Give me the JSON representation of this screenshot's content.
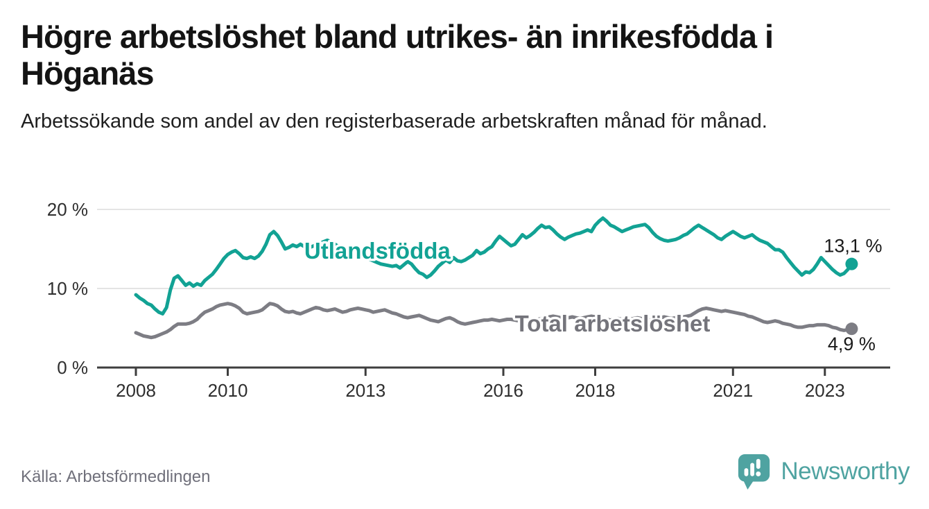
{
  "header": {
    "title": "Högre arbetslöshet bland utrikes- än inrikesfödda i Höganäs",
    "subtitle": "Arbetssökande som andel av den registerbaserade arbetskraften månad för månad."
  },
  "footer": {
    "source": "Källa: Arbetsförmedlingen",
    "brand": {
      "name": "Newsworthy",
      "color": "#4fa3a1",
      "icon": "speech-bubble-bar-chart-icon"
    }
  },
  "colors": {
    "foreign_born_line": "#12a294",
    "total_line": "#7d7d84",
    "axis": "#3d3d3d",
    "grid": "#e4e4e4",
    "tick_label": "#2e2e2e",
    "end_value_label": "#1a1a1a",
    "series_label_total": "#74747b",
    "background": "#ffffff"
  },
  "chart_data": {
    "type": "line",
    "title": "Högre arbetslöshet bland utrikes- än inrikesfödda i Höganäs",
    "subtitle": "Arbetssökande som andel av den registerbaserade arbetskraften månad för månad.",
    "xlabel": "",
    "ylabel": "",
    "x_start": "2008-01",
    "x_end": "2023-08",
    "x_interval": "monthly",
    "x_ticks": [
      2008,
      2010,
      2013,
      2016,
      2018,
      2021,
      2023
    ],
    "y_ticks": [
      0,
      10,
      20
    ],
    "y_tick_labels": [
      "0 %",
      "10 %",
      "20 %"
    ],
    "ylim": [
      0,
      21.5
    ],
    "grid": "horizontal-only",
    "legend": "inline-labels",
    "series": [
      {
        "name": "Utlandsfödda",
        "color": "#12a294",
        "end_value": 13.1,
        "end_label": "13,1 %",
        "values": [
          9.2,
          8.8,
          8.5,
          8.1,
          7.9,
          7.4,
          7.0,
          6.8,
          7.6,
          9.8,
          11.3,
          11.6,
          11.0,
          10.4,
          10.7,
          10.3,
          10.6,
          10.4,
          11.0,
          11.4,
          11.8,
          12.4,
          13.1,
          13.8,
          14.3,
          14.6,
          14.8,
          14.4,
          13.9,
          13.8,
          14.0,
          13.8,
          14.1,
          14.7,
          15.6,
          16.8,
          17.2,
          16.7,
          15.9,
          15.0,
          15.2,
          15.5,
          15.3,
          15.6,
          15.3,
          15.1,
          15.3,
          15.5,
          15.7,
          15.9,
          16.1,
          15.9,
          15.6,
          15.3,
          15.0,
          14.7,
          14.5,
          14.3,
          14.1,
          14.0,
          13.9,
          13.7,
          13.5,
          13.3,
          13.1,
          13.0,
          12.9,
          12.8,
          12.9,
          12.6,
          13.0,
          13.4,
          13.1,
          12.5,
          12.0,
          11.8,
          11.4,
          11.7,
          12.2,
          12.8,
          13.2,
          13.6,
          13.3,
          13.9,
          13.5,
          13.4,
          13.6,
          13.9,
          14.2,
          14.8,
          14.4,
          14.6,
          15.0,
          15.3,
          16.0,
          16.6,
          16.2,
          15.8,
          15.4,
          15.6,
          16.2,
          16.8,
          16.4,
          16.7,
          17.1,
          17.6,
          18.0,
          17.7,
          17.8,
          17.4,
          16.9,
          16.5,
          16.2,
          16.5,
          16.7,
          16.9,
          17.0,
          17.2,
          17.4,
          17.2,
          18.0,
          18.5,
          18.9,
          18.5,
          18.0,
          17.8,
          17.5,
          17.2,
          17.4,
          17.6,
          17.8,
          17.9,
          18.0,
          18.1,
          17.7,
          17.1,
          16.6,
          16.3,
          16.1,
          16.0,
          16.1,
          16.2,
          16.4,
          16.7,
          16.9,
          17.3,
          17.7,
          18.0,
          17.7,
          17.4,
          17.1,
          16.8,
          16.4,
          16.2,
          16.6,
          16.9,
          17.2,
          16.9,
          16.6,
          16.4,
          16.6,
          16.8,
          16.4,
          16.1,
          15.9,
          15.7,
          15.3,
          14.9,
          14.9,
          14.6,
          13.9,
          13.3,
          12.7,
          12.2,
          11.7,
          12.1,
          12.0,
          12.4,
          13.1,
          13.9,
          13.4,
          12.9,
          12.4,
          12.0,
          11.7,
          11.9,
          12.4,
          13.1
        ]
      },
      {
        "name": "Total arbetslöshet",
        "color": "#7d7d84",
        "end_value": 4.9,
        "end_label": "4,9 %",
        "values": [
          4.4,
          4.2,
          4.0,
          3.9,
          3.8,
          3.9,
          4.1,
          4.3,
          4.5,
          4.8,
          5.2,
          5.5,
          5.5,
          5.5,
          5.6,
          5.8,
          6.1,
          6.6,
          7.0,
          7.2,
          7.4,
          7.7,
          7.9,
          8.0,
          8.1,
          8.0,
          7.8,
          7.5,
          7.0,
          6.8,
          6.9,
          7.0,
          7.1,
          7.3,
          7.7,
          8.1,
          8.0,
          7.8,
          7.4,
          7.1,
          7.0,
          7.1,
          6.9,
          6.8,
          7.0,
          7.2,
          7.4,
          7.6,
          7.5,
          7.3,
          7.2,
          7.3,
          7.4,
          7.2,
          7.0,
          7.1,
          7.3,
          7.4,
          7.5,
          7.4,
          7.3,
          7.2,
          7.0,
          7.1,
          7.2,
          7.3,
          7.1,
          6.9,
          6.8,
          6.6,
          6.4,
          6.3,
          6.4,
          6.5,
          6.6,
          6.4,
          6.2,
          6.0,
          5.9,
          5.8,
          6.0,
          6.2,
          6.3,
          6.1,
          5.8,
          5.6,
          5.5,
          5.6,
          5.7,
          5.8,
          5.9,
          6.0,
          6.0,
          6.1,
          6.0,
          5.9,
          6.0,
          6.1,
          6.1,
          6.0,
          5.9,
          6.1,
          6.2,
          6.1,
          6.0,
          6.1,
          6.2,
          6.3,
          6.4,
          6.5,
          6.4,
          6.3,
          6.2,
          6.3,
          6.4,
          6.3,
          6.2,
          6.3,
          6.4,
          6.5,
          6.4,
          6.3,
          6.2,
          6.1,
          6.0,
          6.1,
          6.2,
          6.1,
          6.0,
          6.1,
          6.2,
          6.3,
          6.2,
          6.1,
          6.0,
          6.1,
          6.2,
          6.3,
          6.4,
          6.3,
          6.2,
          6.3,
          6.4,
          6.4,
          6.5,
          6.6,
          6.9,
          7.2,
          7.4,
          7.5,
          7.4,
          7.3,
          7.2,
          7.1,
          7.2,
          7.1,
          7.0,
          6.9,
          6.8,
          6.7,
          6.5,
          6.4,
          6.2,
          6.0,
          5.8,
          5.7,
          5.8,
          5.9,
          5.8,
          5.6,
          5.5,
          5.4,
          5.2,
          5.1,
          5.1,
          5.2,
          5.3,
          5.3,
          5.4,
          5.4,
          5.4,
          5.3,
          5.1,
          5.0,
          4.8,
          4.7,
          4.8,
          4.9
        ]
      }
    ]
  }
}
